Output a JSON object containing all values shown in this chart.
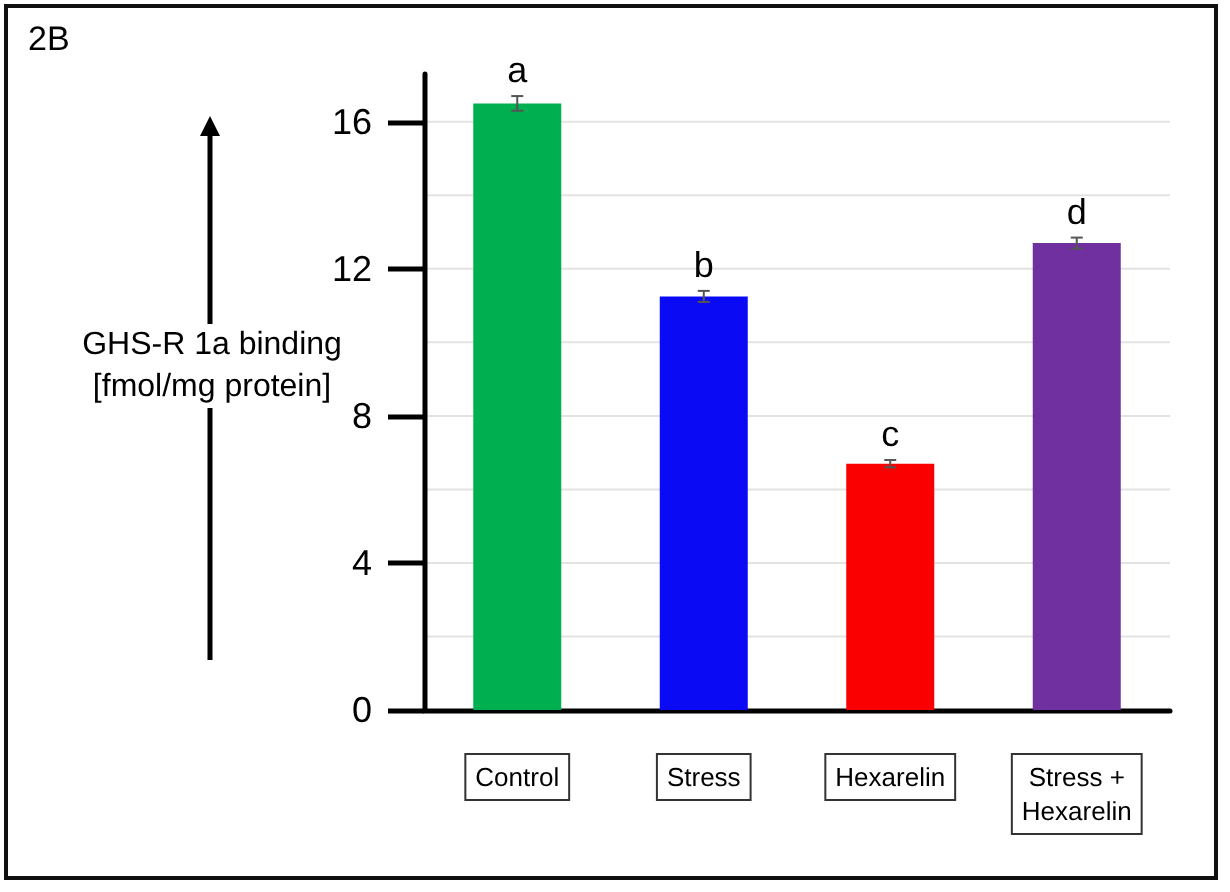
{
  "chart_data": {
    "type": "bar",
    "ylabel": "GHS-R 1a binding [fmol/mg protein]",
    "categories": [
      "Control",
      "Stress",
      "Hexarelin",
      "Stress +\nHexarelin"
    ],
    "values": [
      16.5,
      11.25,
      6.7,
      12.7
    ],
    "colors": [
      "#00b050",
      "#0a0af5",
      "#fa0000",
      "#7030a0"
    ],
    "errors": [
      0.2,
      0.15,
      0.1,
      0.15
    ],
    "ylim": [
      0,
      17.3
    ],
    "yticks": [
      0,
      {
        "value": 2,
        "label": null
      },
      4,
      {
        "value": 6,
        "label": null
      },
      8,
      {
        "value": 10,
        "label": null
      },
      12,
      {
        "value": 14,
        "label": null
      },
      16
    ],
    "grid": "y",
    "annotations": [
      "2B",
      {
        "text": "a",
        "x": "Control",
        "y": 16.7
      },
      {
        "text": "b",
        "x": "Stress",
        "y": 11.4
      },
      {
        "text": "c",
        "x": "Hexarelin",
        "y": 6.8
      },
      {
        "text": "d",
        "x": "Stress +\nHexarelin",
        "y": 12.85
      }
    ]
  }
}
